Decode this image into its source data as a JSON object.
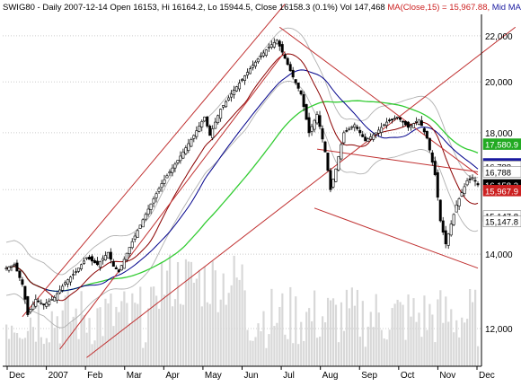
{
  "header": {
    "symbol": "SWIG80",
    "info": " - Daily 2007-12-14 Open 16153, Hi 16164.2, Lo 15944.5, Close 16158.3 (0.1%) Vol 147,468 ",
    "ma_label": "MA(Close,15) = 15,967.88,",
    "mid_label": " Mid MA(Clo"
  },
  "colors": {
    "price": "#000000",
    "ma15": "#8b0000",
    "mid_blue": "#00008b",
    "ma_green": "#33cc33",
    "band": "#b0b0b0",
    "trendline": "#c03030",
    "volume": "#d8d8d8",
    "grid": "#cccccc",
    "tag_green": "#22aa22",
    "tag_blue": "#1a1aa0",
    "tag_red": "#cc2020",
    "tag_black": "#000000"
  },
  "chart_data": {
    "type": "candlestick",
    "yscale": "log",
    "ylim": [
      11100,
      23000
    ],
    "yticks": [
      "12,000",
      "14,000",
      "16,000",
      "18,000",
      "20,000",
      "22,000"
    ],
    "xlabels": [
      "Dec",
      "2007",
      "Feb",
      "Mar",
      "Apr",
      "May",
      "Jun",
      "Jul",
      "Aug",
      "Sep",
      "Oct",
      "Nov",
      "Dec"
    ],
    "last_bar": {
      "date": "2007-12-14",
      "open": 16153,
      "high": 16164.2,
      "low": 15944.5,
      "close": 16158.3,
      "change": "0.1%",
      "volume": 147468
    },
    "ma15_last": 15967.88,
    "price_path": [
      [
        0,
        13600
      ],
      [
        3,
        13700
      ],
      [
        6,
        13150
      ],
      [
        8,
        12350
      ],
      [
        11,
        12750
      ],
      [
        14,
        12600
      ],
      [
        18,
        12800
      ],
      [
        22,
        13200
      ],
      [
        26,
        13500
      ],
      [
        30,
        13900
      ],
      [
        34,
        13700
      ],
      [
        38,
        14050
      ],
      [
        40,
        13650
      ],
      [
        42,
        13500
      ],
      [
        46,
        14200
      ],
      [
        52,
        15200
      ],
      [
        58,
        16200
      ],
      [
        64,
        17000
      ],
      [
        70,
        17900
      ],
      [
        74,
        18600
      ],
      [
        76,
        17900
      ],
      [
        80,
        18900
      ],
      [
        86,
        19800
      ],
      [
        92,
        20700
      ],
      [
        98,
        21500
      ],
      [
        101,
        21800
      ],
      [
        104,
        21000
      ],
      [
        107,
        20200
      ],
      [
        110,
        19500
      ],
      [
        113,
        18000
      ],
      [
        116,
        18700
      ],
      [
        119,
        17300
      ],
      [
        121,
        16000
      ],
      [
        123,
        16700
      ],
      [
        126,
        18000
      ],
      [
        130,
        18300
      ],
      [
        134,
        17700
      ],
      [
        138,
        18000
      ],
      [
        142,
        18400
      ],
      [
        146,
        18600
      ],
      [
        150,
        18200
      ],
      [
        154,
        18500
      ],
      [
        157,
        17800
      ],
      [
        160,
        16500
      ],
      [
        162,
        15000
      ],
      [
        164,
        14300
      ],
      [
        166,
        14900
      ],
      [
        168,
        15500
      ],
      [
        170,
        15900
      ],
      [
        172,
        16300
      ],
      [
        174,
        16400
      ],
      [
        176,
        16158.3
      ]
    ],
    "tags": [
      {
        "label": "17,580.9",
        "price": 17580.9,
        "color": "#22aa22"
      },
      {
        "label": "16,877.7",
        "price": 16877.7,
        "color": "#1a1aa0"
      },
      {
        "label": "16,788",
        "price": 16788,
        "color": "#ffffff"
      },
      {
        "label": "16,788",
        "price": 16600,
        "color": "#ffffff"
      },
      {
        "label": "16,158.3",
        "price": 16158.3,
        "color": "#000000"
      },
      {
        "label": "15,967.9",
        "price": 15967.9,
        "color": "#cc2020"
      },
      {
        "label": "15,147.8",
        "price": 15147.8,
        "color": "#ffffff"
      },
      {
        "label": "15,147.8",
        "price": 14980,
        "color": "#ffffff"
      }
    ]
  }
}
